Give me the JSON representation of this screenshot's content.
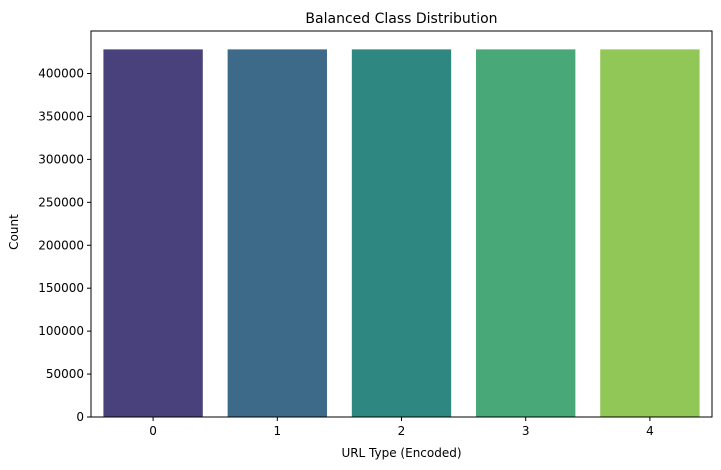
{
  "chart_data": {
    "type": "bar",
    "title": "Balanced Class Distribution",
    "xlabel": "URL Type (Encoded)",
    "ylabel": "Count",
    "categories": [
      "0",
      "1",
      "2",
      "3",
      "4"
    ],
    "values": [
      428103,
      428103,
      428103,
      428103,
      428103
    ],
    "colors": [
      "#48417b",
      "#3d6a88",
      "#2e8780",
      "#48a878",
      "#91c756"
    ],
    "ylim": [
      0,
      449508
    ],
    "yticks": [
      0,
      50000,
      100000,
      150000,
      200000,
      250000,
      300000,
      350000,
      400000
    ],
    "ytick_labels": [
      "0",
      "50000",
      "100000",
      "150000",
      "200000",
      "250000",
      "300000",
      "350000",
      "400000"
    ],
    "grid": false,
    "legend": "none"
  }
}
